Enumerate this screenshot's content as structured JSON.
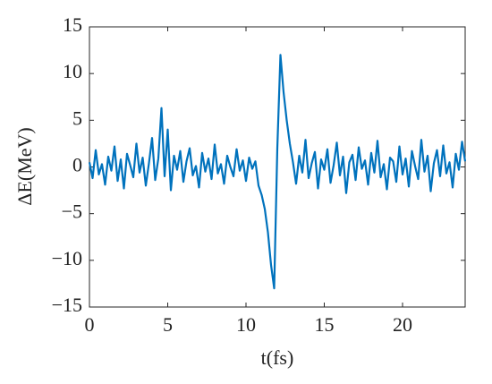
{
  "chart_data": {
    "type": "line",
    "xlabel": "t(fs)",
    "ylabel": "ΔE(MeV)",
    "x": [
      0,
      0.2,
      0.4,
      0.6,
      0.8,
      1,
      1.2,
      1.4,
      1.6,
      1.8,
      2,
      2.2,
      2.4,
      2.6,
      2.8,
      3,
      3.2,
      3.4,
      3.6,
      3.8,
      4,
      4.2,
      4.4,
      4.6,
      4.8,
      5,
      5.2,
      5.4,
      5.6,
      5.8,
      6,
      6.2,
      6.4,
      6.6,
      6.8,
      7,
      7.2,
      7.4,
      7.6,
      7.8,
      8,
      8.2,
      8.4,
      8.6,
      8.8,
      9,
      9.2,
      9.4,
      9.6,
      9.8,
      10,
      10.2,
      10.4,
      10.6,
      10.8,
      11,
      11.2,
      11.4,
      11.6,
      11.8,
      12,
      12.2,
      12.4,
      12.6,
      12.8,
      13,
      13.2,
      13.4,
      13.6,
      13.8,
      14,
      14.2,
      14.4,
      14.6,
      14.8,
      15,
      15.2,
      15.4,
      15.6,
      15.8,
      16,
      16.2,
      16.4,
      16.6,
      16.8,
      17,
      17.2,
      17.4,
      17.6,
      17.8,
      18,
      18.2,
      18.4,
      18.6,
      18.8,
      19,
      19.2,
      19.4,
      19.6,
      19.8,
      20,
      20.2,
      20.4,
      20.6,
      20.8,
      21,
      21.2,
      21.4,
      21.6,
      21.8,
      22,
      22.2,
      22.4,
      22.6,
      22.8,
      23,
      23.2,
      23.4,
      23.6,
      23.8,
      24
    ],
    "series": [
      {
        "color": "#0072bd",
        "values": [
          0.5,
          -1.2,
          1.8,
          -0.8,
          0.3,
          -1.9,
          1.1,
          -0.4,
          2.2,
          -1.5,
          0.8,
          -2.3,
          1.4,
          0.2,
          -1.1,
          2.5,
          -0.6,
          1.0,
          -2.0,
          0.4,
          3.1,
          -1.4,
          0.9,
          6.3,
          -1.0,
          4.0,
          -2.5,
          1.2,
          -0.3,
          1.7,
          -1.6,
          0.6,
          2.0,
          -0.9,
          0.1,
          -2.2,
          1.5,
          -0.5,
          0.9,
          -1.3,
          2.4,
          -0.7,
          0.3,
          -1.8,
          1.2,
          0.0,
          -1.0,
          1.9,
          -0.4,
          0.7,
          -1.5,
          1.0,
          -0.2,
          0.6,
          -2.0,
          -3.0,
          -4.5,
          -7.0,
          -10.5,
          -13.0,
          2.0,
          12.0,
          8.0,
          5.0,
          2.5,
          0.5,
          -1.8,
          1.2,
          -0.6,
          2.9,
          -1.2,
          0.4,
          1.6,
          -2.3,
          0.8,
          -0.3,
          1.9,
          -1.7,
          0.2,
          2.6,
          -0.9,
          1.1,
          -2.8,
          0.5,
          1.3,
          -1.4,
          2.1,
          -0.2,
          0.7,
          -1.9,
          1.5,
          -0.6,
          2.8,
          -1.1,
          0.3,
          -2.4,
          1.0,
          0.6,
          -1.6,
          2.2,
          -0.8,
          0.9,
          -2.1,
          1.7,
          0.1,
          -1.3,
          2.9,
          -0.5,
          1.2,
          -2.6,
          0.4,
          1.8,
          -1.0,
          2.3,
          -0.7,
          0.5,
          -2.2,
          1.4,
          -0.3,
          2.7,
          0.6
        ]
      }
    ],
    "xlim": [
      0,
      24
    ],
    "ylim": [
      -15,
      15
    ],
    "xticks": [
      0,
      5,
      10,
      15,
      20
    ],
    "yticks": [
      {
        "value": -15,
        "label": "−15"
      },
      {
        "value": -10,
        "label": "−10"
      },
      {
        "value": -5,
        "label": "−5"
      },
      0,
      5,
      10,
      15
    ]
  }
}
